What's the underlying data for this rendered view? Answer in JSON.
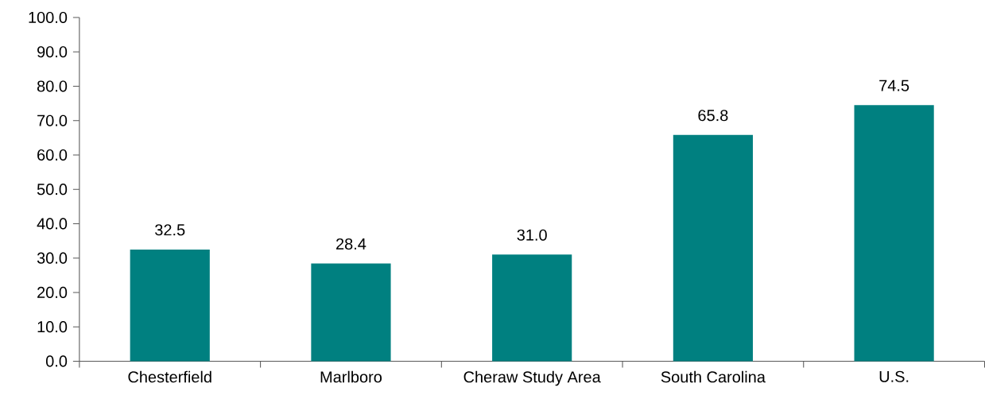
{
  "chart_data": {
    "type": "bar",
    "categories": [
      "Chesterfield",
      "Marlboro",
      "Cheraw Study Area",
      "South Carolina",
      "U.S."
    ],
    "values": [
      32.5,
      28.4,
      31.0,
      65.8,
      74.5
    ],
    "value_labels": [
      "32.5",
      "28.4",
      "31.0",
      "65.8",
      "74.5"
    ],
    "color": "#008080",
    "ylim": [
      0,
      100
    ],
    "yticks": [
      {
        "value": 0,
        "label": "0.0"
      },
      {
        "value": 10,
        "label": "10.0"
      },
      {
        "value": 20,
        "label": "20.0"
      },
      {
        "value": 30,
        "label": "30.0"
      },
      {
        "value": 40,
        "label": "40.0"
      },
      {
        "value": 50,
        "label": "50.0"
      },
      {
        "value": 60,
        "label": "60.0"
      },
      {
        "value": 70,
        "label": "70.0"
      },
      {
        "value": 80,
        "label": "80.0"
      },
      {
        "value": 90,
        "label": "90.0"
      },
      {
        "value": 100,
        "label": "100.0"
      }
    ],
    "grid": false
  }
}
